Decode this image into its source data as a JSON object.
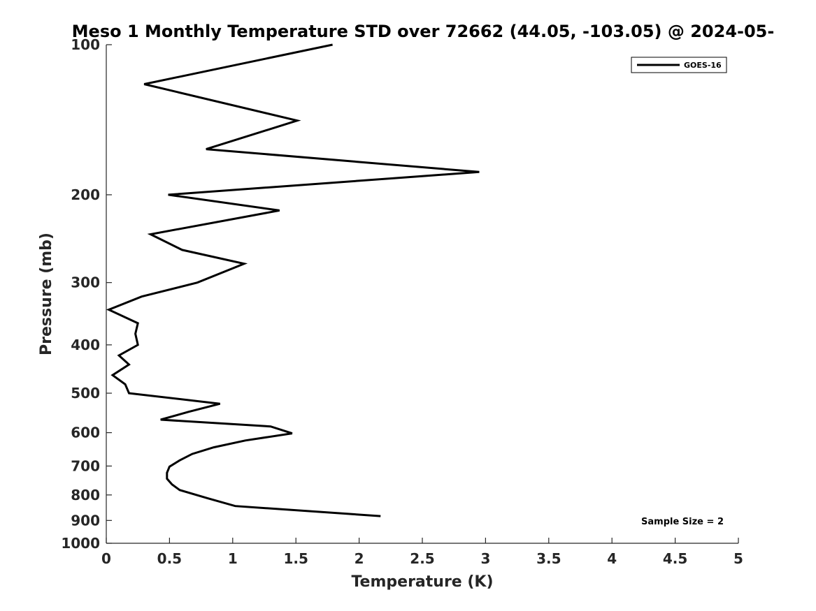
{
  "chart_data": {
    "type": "line",
    "title": "Meso 1 Monthly Temperature STD over 72662 (44.05, -103.05) @ 2024-05-",
    "xlabel": "Temperature (K)",
    "ylabel": "Pressure (mb)",
    "xlim": [
      0,
      5
    ],
    "ylim": [
      1000,
      100
    ],
    "yscale": "log",
    "y_reversed": true,
    "grid": false,
    "legend_position": "top-right",
    "x_ticks": [
      "0",
      "0.5",
      "1",
      "1.5",
      "2",
      "2.5",
      "3",
      "3.5",
      "4",
      "4.5",
      "5"
    ],
    "x_tick_values": [
      0,
      0.5,
      1,
      1.5,
      2,
      2.5,
      3,
      3.5,
      4,
      4.5,
      5
    ],
    "y_ticks": [
      "100",
      "200",
      "300",
      "400",
      "500",
      "600",
      "700",
      "800",
      "900",
      "1000"
    ],
    "y_tick_values": [
      100,
      200,
      300,
      400,
      500,
      600,
      700,
      800,
      900,
      1000
    ],
    "series": [
      {
        "name": "GOES-16",
        "color": "#000000",
        "points": [
          {
            "x": 1.79,
            "y": 100
          },
          {
            "x": 0.3,
            "y": 120
          },
          {
            "x": 1.51,
            "y": 142
          },
          {
            "x": 0.79,
            "y": 162
          },
          {
            "x": 2.95,
            "y": 180
          },
          {
            "x": 0.49,
            "y": 200
          },
          {
            "x": 1.37,
            "y": 215
          },
          {
            "x": 0.35,
            "y": 240
          },
          {
            "x": 0.6,
            "y": 258
          },
          {
            "x": 1.09,
            "y": 275
          },
          {
            "x": 0.72,
            "y": 300
          },
          {
            "x": 0.28,
            "y": 320
          },
          {
            "x": 0.02,
            "y": 340
          },
          {
            "x": 0.25,
            "y": 362
          },
          {
            "x": 0.23,
            "y": 380
          },
          {
            "x": 0.25,
            "y": 400
          },
          {
            "x": 0.1,
            "y": 420
          },
          {
            "x": 0.18,
            "y": 438
          },
          {
            "x": 0.05,
            "y": 460
          },
          {
            "x": 0.15,
            "y": 480
          },
          {
            "x": 0.18,
            "y": 500
          },
          {
            "x": 0.9,
            "y": 525
          },
          {
            "x": 0.65,
            "y": 545
          },
          {
            "x": 0.43,
            "y": 565
          },
          {
            "x": 1.3,
            "y": 583
          },
          {
            "x": 1.47,
            "y": 602
          },
          {
            "x": 1.1,
            "y": 622
          },
          {
            "x": 0.85,
            "y": 642
          },
          {
            "x": 0.68,
            "y": 662
          },
          {
            "x": 0.58,
            "y": 682
          },
          {
            "x": 0.5,
            "y": 702
          },
          {
            "x": 0.48,
            "y": 722
          },
          {
            "x": 0.48,
            "y": 742
          },
          {
            "x": 0.52,
            "y": 762
          },
          {
            "x": 0.58,
            "y": 782
          },
          {
            "x": 0.8,
            "y": 812
          },
          {
            "x": 1.02,
            "y": 842
          },
          {
            "x": 2.17,
            "y": 882
          }
        ]
      }
    ],
    "annotations": [
      {
        "text": "Sample Size = 2",
        "position": "bottom-right"
      }
    ]
  }
}
